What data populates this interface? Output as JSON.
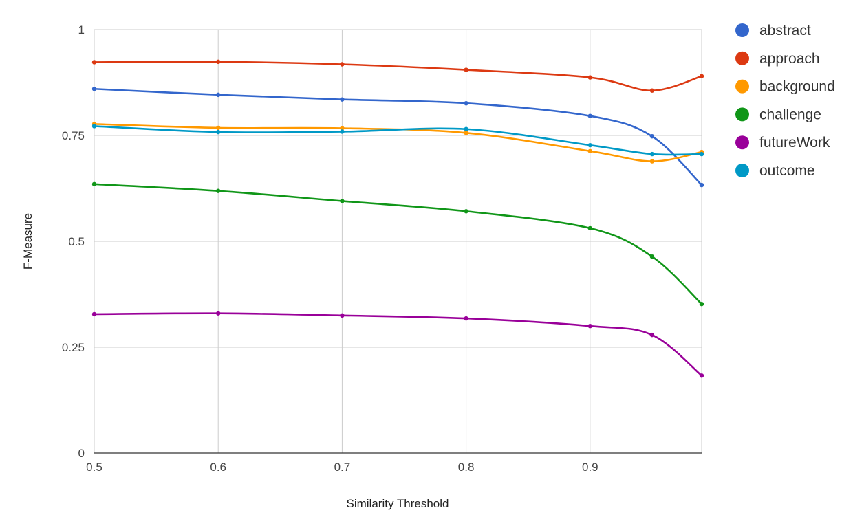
{
  "chart_data": {
    "type": "line",
    "title": "",
    "xlabel": "Similarity Threshold",
    "ylabel": "F-Measure",
    "x": [
      0.5,
      0.6,
      0.7,
      0.8,
      0.9,
      0.95,
      0.99
    ],
    "xlim": [
      0.5,
      0.99
    ],
    "ylim": [
      0,
      1
    ],
    "x_ticks": [
      "0.5",
      "0.6",
      "0.7",
      "0.8",
      "0.9"
    ],
    "x_tick_values": [
      0.5,
      0.6,
      0.7,
      0.8,
      0.9
    ],
    "y_ticks": [
      "0",
      "0.25",
      "0.5",
      "0.75",
      "1"
    ],
    "y_tick_values": [
      0,
      0.25,
      0.5,
      0.75,
      1
    ],
    "grid": true,
    "smooth": true,
    "legend_position": "right",
    "series": [
      {
        "name": "abstract",
        "color": "#3366cc",
        "values": [
          0.86,
          0.846,
          0.835,
          0.826,
          0.796,
          0.748,
          0.633
        ]
      },
      {
        "name": "approach",
        "color": "#dc3912",
        "values": [
          0.923,
          0.924,
          0.918,
          0.905,
          0.887,
          0.856,
          0.89
        ]
      },
      {
        "name": "background",
        "color": "#ff9900",
        "values": [
          0.777,
          0.768,
          0.767,
          0.756,
          0.713,
          0.689,
          0.711
        ]
      },
      {
        "name": "challenge",
        "color": "#109618",
        "values": [
          0.635,
          0.619,
          0.595,
          0.571,
          0.531,
          0.464,
          0.352
        ]
      },
      {
        "name": "futureWork",
        "color": "#990099",
        "values": [
          0.328,
          0.33,
          0.325,
          0.318,
          0.3,
          0.279,
          0.183
        ]
      },
      {
        "name": "outcome",
        "color": "#0099c6",
        "values": [
          0.772,
          0.758,
          0.759,
          0.765,
          0.727,
          0.706,
          0.706
        ]
      }
    ]
  }
}
